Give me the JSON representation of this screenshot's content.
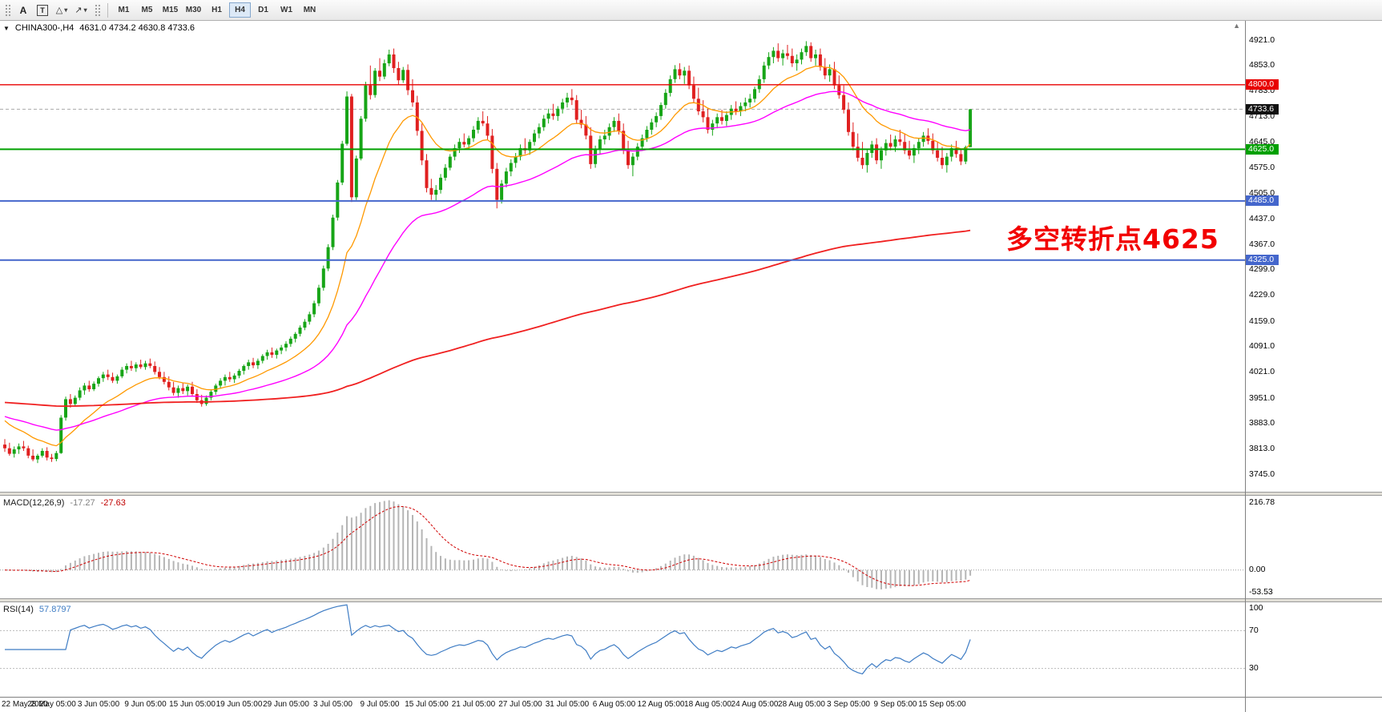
{
  "icons": {
    "collapse": "▼",
    "shift_marker": "▲",
    "caret_down": "▾",
    "shapes": "△",
    "arrows": "↗"
  },
  "toolbar": {
    "tools": [
      {
        "label": "A"
      },
      {
        "label": "T"
      }
    ],
    "periods": [
      {
        "label": "M1"
      },
      {
        "label": "M5"
      },
      {
        "label": "M15"
      },
      {
        "label": "M30"
      },
      {
        "label": "H1"
      },
      {
        "label": "H4",
        "active": true
      },
      {
        "label": "D1"
      },
      {
        "label": "W1"
      },
      {
        "label": "MN"
      }
    ]
  },
  "chart": {
    "symbol": "CHINA300-,H4",
    "ohlc": "4631.0 4734.2 4630.8 4733.6"
  },
  "chart_data": {
    "type": "candlestick",
    "symbol": "CHINA300-",
    "timeframe": "H4",
    "last_ohlc": {
      "open": 4631.0,
      "high": 4734.2,
      "low": 4630.8,
      "close": 4733.6
    },
    "colors": {
      "up": "#17a517",
      "down": "#e02020",
      "background": "#ffffff"
    },
    "price_range": [
      3745,
      4921
    ],
    "y_ticks": [
      "4921.0",
      "4853.0",
      "4783.0",
      "4713.0",
      "4645.0",
      "4575.0",
      "4505.0",
      "4437.0",
      "4367.0",
      "4299.0",
      "4229.0",
      "4159.0",
      "4091.0",
      "4021.0",
      "3951.0",
      "3883.0",
      "3813.0",
      "3745.0"
    ],
    "x_labels": [
      "22 May 2020",
      "28 May 05:00",
      "3 Jun 05:00",
      "9 Jun 05:00",
      "15 Jun 05:00",
      "19 Jun 05:00",
      "29 Jun 05:00",
      "3 Jul 05:00",
      "9 Jul 05:00",
      "15 Jul 05:00",
      "21 Jul 05:00",
      "27 Jul 05:00",
      "31 Jul 05:00",
      "6 Aug 05:00",
      "12 Aug 05:00",
      "18 Aug 05:00",
      "24 Aug 05:00",
      "28 Aug 05:00",
      "3 Sep 05:00",
      "9 Sep 05:00",
      "15 Sep 05:00"
    ],
    "bars_per_label": 10,
    "levels": [
      {
        "value": 4800.0,
        "label": "4800.0",
        "color": "#e80000",
        "width": 1.4
      },
      {
        "value": 4625.0,
        "label": "4625.0",
        "color": "#00a000",
        "width": 2
      },
      {
        "value": 4485.0,
        "label": "4485.0",
        "color": "#4466cc",
        "width": 2
      },
      {
        "value": 4325.0,
        "label": "4325.0",
        "color": "#4466cc",
        "width": 2
      }
    ],
    "current_price": {
      "value": 4733.6,
      "label": "4733.6",
      "tag_color": "#111111"
    },
    "annotation": {
      "text": "多空转折点4625",
      "color": "#f20000"
    },
    "moving_averages": [
      {
        "name": "ma-fast",
        "period": 16,
        "seed": 3900,
        "color": "#ff9900",
        "width": 1.3
      },
      {
        "name": "ma-mid",
        "period": 48,
        "seed": 3905,
        "color": "#ff00ff",
        "width": 1.4
      },
      {
        "name": "ma-slow",
        "period": 300,
        "seed": 3940,
        "color": "#f02020",
        "width": 1.8
      }
    ],
    "macd": {
      "label": "MACD(12,26,9)",
      "fast": 12,
      "slow": 26,
      "signal": 9,
      "value_main": "-17.27",
      "value_signal": "-27.63",
      "scale_labels": [
        "216.78",
        "0.00",
        "-53.53"
      ],
      "hist_color": "#b5b5b5",
      "signal_color": "#d00000"
    },
    "rsi": {
      "label": "RSI(14)",
      "period": 14,
      "value": "57.8797",
      "levels": [
        100,
        70,
        30
      ],
      "line_color": "#3e7cc4"
    },
    "candles": [
      [
        3825,
        3840,
        3805,
        3815
      ],
      [
        3815,
        3830,
        3795,
        3800
      ],
      [
        3800,
        3820,
        3790,
        3812
      ],
      [
        3812,
        3828,
        3800,
        3820
      ],
      [
        3820,
        3835,
        3808,
        3815
      ],
      [
        3815,
        3822,
        3788,
        3795
      ],
      [
        3795,
        3812,
        3780,
        3785
      ],
      [
        3785,
        3800,
        3775,
        3795
      ],
      [
        3795,
        3815,
        3790,
        3808
      ],
      [
        3808,
        3818,
        3782,
        3790
      ],
      [
        3790,
        3800,
        3778,
        3786
      ],
      [
        3786,
        3808,
        3780,
        3802
      ],
      [
        3802,
        3905,
        3800,
        3898
      ],
      [
        3898,
        3955,
        3890,
        3948
      ],
      [
        3948,
        3962,
        3925,
        3935
      ],
      [
        3935,
        3958,
        3928,
        3952
      ],
      [
        3952,
        3980,
        3945,
        3972
      ],
      [
        3972,
        3992,
        3960,
        3985
      ],
      [
        3985,
        3998,
        3968,
        3975
      ],
      [
        3975,
        3996,
        3970,
        3990
      ],
      [
        3990,
        4010,
        3982,
        4005
      ],
      [
        4005,
        4022,
        3995,
        4015
      ],
      [
        4015,
        4028,
        4000,
        4008
      ],
      [
        4008,
        4020,
        3992,
        3998
      ],
      [
        3998,
        4015,
        3990,
        4010
      ],
      [
        4010,
        4035,
        4005,
        4028
      ],
      [
        4028,
        4045,
        4018,
        4038
      ],
      [
        4038,
        4052,
        4025,
        4032
      ],
      [
        4032,
        4048,
        4022,
        4042
      ],
      [
        4042,
        4055,
        4030,
        4035
      ],
      [
        4035,
        4052,
        4028,
        4045
      ],
      [
        4045,
        4058,
        4032,
        4038
      ],
      [
        4038,
        4050,
        4015,
        4022
      ],
      [
        4022,
        4035,
        4002,
        4008
      ],
      [
        4008,
        4022,
        3988,
        3995
      ],
      [
        3995,
        4010,
        3972,
        3980
      ],
      [
        3980,
        3995,
        3958,
        3965
      ],
      [
        3965,
        3985,
        3952,
        3978
      ],
      [
        3978,
        3992,
        3962,
        3970
      ],
      [
        3970,
        3988,
        3958,
        3982
      ],
      [
        3982,
        3995,
        3955,
        3962
      ],
      [
        3962,
        3975,
        3938,
        3945
      ],
      [
        3945,
        3960,
        3928,
        3935
      ],
      [
        3935,
        3958,
        3930,
        3952
      ],
      [
        3952,
        3975,
        3945,
        3968
      ],
      [
        3968,
        3990,
        3960,
        3985
      ],
      [
        3985,
        4005,
        3978,
        3998
      ],
      [
        3998,
        4015,
        3985,
        4008
      ],
      [
        4008,
        4022,
        3995,
        4002
      ],
      [
        4002,
        4018,
        3992,
        4012
      ],
      [
        4012,
        4030,
        4005,
        4025
      ],
      [
        4025,
        4042,
        4015,
        4038
      ],
      [
        4038,
        4055,
        4028,
        4048
      ],
      [
        4048,
        4060,
        4032,
        4040
      ],
      [
        4040,
        4058,
        4030,
        4052
      ],
      [
        4052,
        4070,
        4045,
        4065
      ],
      [
        4065,
        4082,
        4055,
        4075
      ],
      [
        4075,
        4088,
        4060,
        4068
      ],
      [
        4068,
        4085,
        4058,
        4080
      ],
      [
        4080,
        4095,
        4070,
        4088
      ],
      [
        4088,
        4105,
        4078,
        4098
      ],
      [
        4098,
        4118,
        4090,
        4112
      ],
      [
        4112,
        4130,
        4102,
        4125
      ],
      [
        4125,
        4148,
        4118,
        4142
      ],
      [
        4142,
        4165,
        4135,
        4158
      ],
      [
        4158,
        4185,
        4150,
        4178
      ],
      [
        4178,
        4215,
        4170,
        4208
      ],
      [
        4208,
        4258,
        4200,
        4250
      ],
      [
        4250,
        4310,
        4242,
        4302
      ],
      [
        4302,
        4368,
        4295,
        4360
      ],
      [
        4360,
        4448,
        4352,
        4440
      ],
      [
        4440,
        4542,
        4432,
        4535
      ],
      [
        4535,
        4648,
        4528,
        4640
      ],
      [
        4640,
        4782,
        4635,
        4768
      ],
      [
        4768,
        4775,
        4482,
        4495
      ],
      [
        4495,
        4608,
        4488,
        4600
      ],
      [
        4600,
        4715,
        4595,
        4708
      ],
      [
        4708,
        4808,
        4700,
        4798
      ],
      [
        4798,
        4852,
        4760,
        4772
      ],
      [
        4772,
        4845,
        4765,
        4838
      ],
      [
        4838,
        4872,
        4810,
        4822
      ],
      [
        4822,
        4868,
        4815,
        4858
      ],
      [
        4858,
        4895,
        4850,
        4882
      ],
      [
        4882,
        4898,
        4832,
        4845
      ],
      [
        4845,
        4862,
        4800,
        4812
      ],
      [
        4812,
        4848,
        4805,
        4840
      ],
      [
        4840,
        4855,
        4772,
        4785
      ],
      [
        4785,
        4815,
        4740,
        4752
      ],
      [
        4752,
        4770,
        4662,
        4675
      ],
      [
        4675,
        4695,
        4582,
        4595
      ],
      [
        4595,
        4612,
        4508,
        4520
      ],
      [
        4520,
        4545,
        4488,
        4502
      ],
      [
        4502,
        4528,
        4485,
        4515
      ],
      [
        4515,
        4558,
        4505,
        4548
      ],
      [
        4548,
        4585,
        4540,
        4575
      ],
      [
        4575,
        4612,
        4568,
        4605
      ],
      [
        4605,
        4638,
        4595,
        4628
      ],
      [
        4628,
        4655,
        4615,
        4645
      ],
      [
        4645,
        4668,
        4630,
        4638
      ],
      [
        4638,
        4662,
        4625,
        4655
      ],
      [
        4655,
        4688,
        4645,
        4678
      ],
      [
        4678,
        4712,
        4668,
        4702
      ],
      [
        4702,
        4728,
        4688,
        4695
      ],
      [
        4695,
        4715,
        4652,
        4662
      ],
      [
        4662,
        4680,
        4560,
        4572
      ],
      [
        4572,
        4588,
        4465,
        4488
      ],
      [
        4488,
        4542,
        4478,
        4532
      ],
      [
        4532,
        4575,
        4522,
        4565
      ],
      [
        4565,
        4598,
        4552,
        4588
      ],
      [
        4588,
        4615,
        4575,
        4605
      ],
      [
        4605,
        4638,
        4595,
        4628
      ],
      [
        4628,
        4655,
        4612,
        4622
      ],
      [
        4622,
        4652,
        4610,
        4645
      ],
      [
        4645,
        4678,
        4635,
        4668
      ],
      [
        4668,
        4695,
        4655,
        4685
      ],
      [
        4685,
        4718,
        4675,
        4708
      ],
      [
        4708,
        4735,
        4695,
        4722
      ],
      [
        4722,
        4748,
        4705,
        4715
      ],
      [
        4715,
        4742,
        4702,
        4735
      ],
      [
        4735,
        4762,
        4722,
        4752
      ],
      [
        4752,
        4778,
        4738,
        4765
      ],
      [
        4765,
        4788,
        4745,
        4758
      ],
      [
        4758,
        4772,
        4695,
        4705
      ],
      [
        4705,
        4732,
        4682,
        4692
      ],
      [
        4692,
        4715,
        4652,
        4662
      ],
      [
        4662,
        4685,
        4572,
        4585
      ],
      [
        4585,
        4635,
        4575,
        4625
      ],
      [
        4625,
        4662,
        4612,
        4652
      ],
      [
        4652,
        4678,
        4638,
        4662
      ],
      [
        4662,
        4695,
        4650,
        4685
      ],
      [
        4685,
        4712,
        4672,
        4702
      ],
      [
        4702,
        4722,
        4665,
        4675
      ],
      [
        4675,
        4695,
        4612,
        4622
      ],
      [
        4622,
        4648,
        4572,
        4582
      ],
      [
        4582,
        4615,
        4552,
        4605
      ],
      [
        4605,
        4642,
        4595,
        4632
      ],
      [
        4632,
        4665,
        4622,
        4655
      ],
      [
        4655,
        4688,
        4645,
        4678
      ],
      [
        4678,
        4708,
        4665,
        4698
      ],
      [
        4698,
        4725,
        4685,
        4715
      ],
      [
        4715,
        4752,
        4705,
        4745
      ],
      [
        4745,
        4788,
        4735,
        4778
      ],
      [
        4778,
        4825,
        4768,
        4815
      ],
      [
        4815,
        4853,
        4805,
        4842
      ],
      [
        4842,
        4858,
        4815,
        4825
      ],
      [
        4825,
        4848,
        4802,
        4838
      ],
      [
        4838,
        4852,
        4788,
        4798
      ],
      [
        4798,
        4822,
        4752,
        4762
      ],
      [
        4762,
        4792,
        4718,
        4728
      ],
      [
        4728,
        4758,
        4698,
        4712
      ],
      [
        4712,
        4735,
        4668,
        4678
      ],
      [
        4678,
        4705,
        4662,
        4695
      ],
      [
        4695,
        4722,
        4682,
        4712
      ],
      [
        4712,
        4732,
        4692,
        4702
      ],
      [
        4702,
        4728,
        4688,
        4718
      ],
      [
        4718,
        4745,
        4705,
        4735
      ],
      [
        4735,
        4755,
        4718,
        4728
      ],
      [
        4728,
        4752,
        4715,
        4742
      ],
      [
        4742,
        4765,
        4728,
        4752
      ],
      [
        4752,
        4775,
        4738,
        4762
      ],
      [
        4762,
        4795,
        4752,
        4788
      ],
      [
        4788,
        4825,
        4778,
        4815
      ],
      [
        4815,
        4862,
        4805,
        4852
      ],
      [
        4852,
        4888,
        4842,
        4875
      ],
      [
        4875,
        4902,
        4858,
        4892
      ],
      [
        4892,
        4912,
        4862,
        4872
      ],
      [
        4872,
        4895,
        4852,
        4885
      ],
      [
        4885,
        4908,
        4868,
        4878
      ],
      [
        4878,
        4898,
        4848,
        4858
      ],
      [
        4858,
        4882,
        4838,
        4868
      ],
      [
        4868,
        4898,
        4855,
        4888
      ],
      [
        4888,
        4918,
        4878,
        4905
      ],
      [
        4905,
        4915,
        4862,
        4872
      ],
      [
        4872,
        4895,
        4852,
        4882
      ],
      [
        4882,
        4898,
        4838,
        4848
      ],
      [
        4848,
        4872,
        4815,
        4825
      ],
      [
        4825,
        4855,
        4808,
        4842
      ],
      [
        4842,
        4862,
        4788,
        4798
      ],
      [
        4798,
        4825,
        4762,
        4772
      ],
      [
        4772,
        4798,
        4722,
        4732
      ],
      [
        4732,
        4752,
        4662,
        4672
      ],
      [
        4672,
        4698,
        4622,
        4632
      ],
      [
        4632,
        4668,
        4592,
        4602
      ],
      [
        4602,
        4645,
        4572,
        4582
      ],
      [
        4582,
        4625,
        4562,
        4615
      ],
      [
        4615,
        4648,
        4602,
        4638
      ],
      [
        4638,
        4655,
        4585,
        4595
      ],
      [
        4595,
        4632,
        4572,
        4622
      ],
      [
        4622,
        4652,
        4608,
        4642
      ],
      [
        4642,
        4665,
        4622,
        4632
      ],
      [
        4632,
        4662,
        4618,
        4652
      ],
      [
        4652,
        4678,
        4635,
        4645
      ],
      [
        4645,
        4668,
        4612,
        4622
      ],
      [
        4622,
        4648,
        4598,
        4608
      ],
      [
        4608,
        4638,
        4588,
        4628
      ],
      [
        4628,
        4655,
        4612,
        4645
      ],
      [
        4645,
        4672,
        4632,
        4662
      ],
      [
        4662,
        4682,
        4638,
        4648
      ],
      [
        4648,
        4668,
        4612,
        4622
      ],
      [
        4622,
        4645,
        4592,
        4602
      ],
      [
        4602,
        4632,
        4572,
        4582
      ],
      [
        4582,
        4615,
        4562,
        4605
      ],
      [
        4605,
        4638,
        4592,
        4628
      ],
      [
        4628,
        4648,
        4602,
        4612
      ],
      [
        4612,
        4625,
        4582,
        4592
      ],
      [
        4592,
        4635,
        4585,
        4631
      ],
      [
        4631,
        4734.2,
        4630.8,
        4733.6
      ]
    ]
  }
}
